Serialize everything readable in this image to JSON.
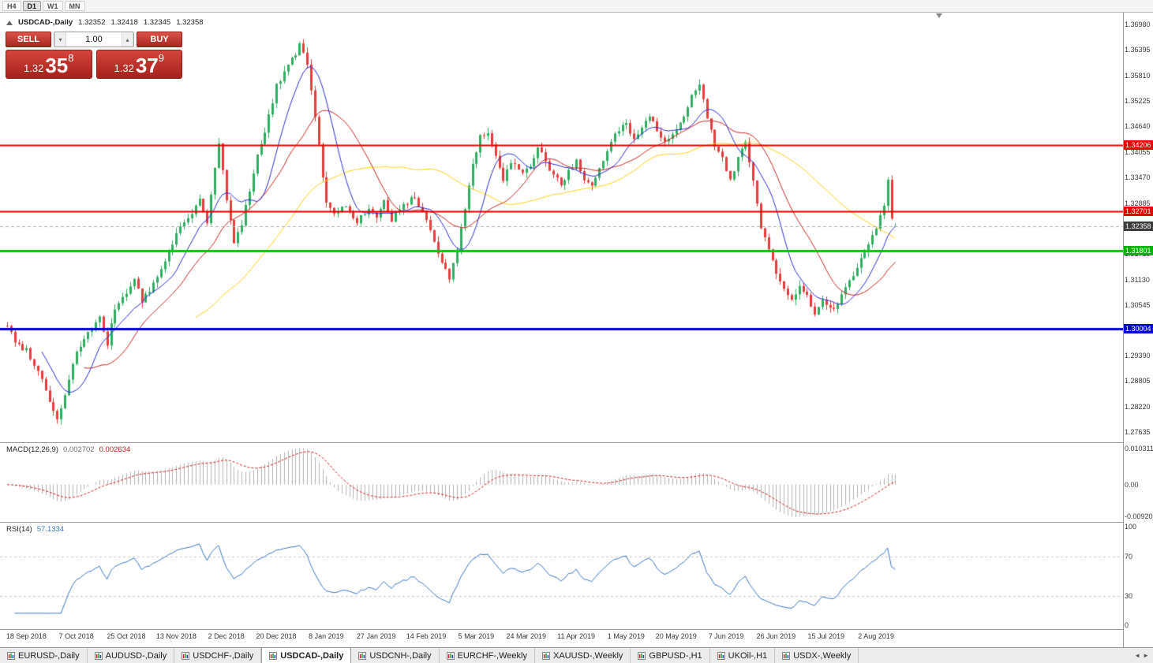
{
  "window": {
    "title": "USDCAD-,Daily"
  },
  "toolbar": {
    "timeframes": [
      {
        "label": "H4",
        "active": false
      },
      {
        "label": "D1",
        "active": true
      },
      {
        "label": "W1",
        "active": false
      },
      {
        "label": "MN",
        "active": false
      }
    ]
  },
  "chart_header": {
    "symbol": "USDCAD-,Daily",
    "open": "1.32352",
    "high": "1.32418",
    "low": "1.32345",
    "close": "1.32358"
  },
  "one_click": {
    "sell_label": "SELL",
    "buy_label": "BUY",
    "volume": "1.00",
    "vol_down_glyph": "▾",
    "vol_up_glyph": "▴",
    "sell_price": {
      "big": "1.32",
      "mid": "35",
      "sup": "8"
    },
    "buy_price": {
      "big": "1.32",
      "mid": "37",
      "sup": "9"
    }
  },
  "macd_panel": {
    "title": "MACD(12,26,9)",
    "value1": "0.002702",
    "value2": "0.002634",
    "axis_top": "0.010311",
    "axis_zero": "0.00",
    "axis_bottom": "-0.00920"
  },
  "rsi_panel": {
    "title": "RSI(14)",
    "value": "57.1334",
    "axis": [
      "100",
      "70",
      "30",
      "0"
    ]
  },
  "bottom_tabs": {
    "items": [
      {
        "label": "EURUSD-,Daily",
        "active": false
      },
      {
        "label": "AUDUSD-,Daily",
        "active": false
      },
      {
        "label": "USDCHF-,Daily",
        "active": false
      },
      {
        "label": "USDCAD-,Daily",
        "active": true
      },
      {
        "label": "USDCNH-,Daily",
        "active": false
      },
      {
        "label": "EURCHF-,Weekly",
        "active": false
      },
      {
        "label": "XAUUSD-,Weekly",
        "active": false
      },
      {
        "label": "GBPUSD-,H1",
        "active": false
      },
      {
        "label": "UKOil-,H1",
        "active": false
      },
      {
        "label": "USDX-,Weekly",
        "active": false
      }
    ],
    "scroll_left_glyph": "◄",
    "scroll_right_glyph": "►"
  },
  "chart_data": {
    "type": "candlestick",
    "symbol": "USDCAD",
    "timeframe": "Daily",
    "n_candles": 232,
    "last_candle": {
      "o": 1.32352,
      "h": 1.32418,
      "l": 1.32345,
      "c": 1.32358
    },
    "price_path_waypoints": [
      [
        0,
        1.301
      ],
      [
        2,
        1.2968
      ],
      [
        5,
        1.2952
      ],
      [
        8,
        1.2905
      ],
      [
        11,
        1.2838
      ],
      [
        13,
        1.279
      ],
      [
        15,
        1.2852
      ],
      [
        18,
        1.2948
      ],
      [
        21,
        1.299
      ],
      [
        24,
        1.3022
      ],
      [
        26,
        1.2965
      ],
      [
        28,
        1.3048
      ],
      [
        31,
        1.3082
      ],
      [
        33,
        1.3118
      ],
      [
        35,
        1.3062
      ],
      [
        38,
        1.3102
      ],
      [
        41,
        1.3152
      ],
      [
        44,
        1.3218
      ],
      [
        47,
        1.3258
      ],
      [
        50,
        1.3292
      ],
      [
        52,
        1.3245
      ],
      [
        55,
        1.3425
      ],
      [
        57,
        1.3298
      ],
      [
        59,
        1.3195
      ],
      [
        61,
        1.3242
      ],
      [
        63,
        1.332
      ],
      [
        65,
        1.3398
      ],
      [
        67,
        1.3452
      ],
      [
        70,
        1.3558
      ],
      [
        73,
        1.3605
      ],
      [
        76,
        1.3648
      ],
      [
        78,
        1.361
      ],
      [
        80,
        1.3482
      ],
      [
        82,
        1.3352
      ],
      [
        83,
        1.3295
      ],
      [
        85,
        1.3262
      ],
      [
        88,
        1.3282
      ],
      [
        91,
        1.3248
      ],
      [
        94,
        1.3272
      ],
      [
        96,
        1.3252
      ],
      [
        98,
        1.329
      ],
      [
        100,
        1.3252
      ],
      [
        103,
        1.3282
      ],
      [
        106,
        1.3302
      ],
      [
        109,
        1.3252
      ],
      [
        111,
        1.3202
      ],
      [
        113,
        1.3152
      ],
      [
        115,
        1.3118
      ],
      [
        117,
        1.3182
      ],
      [
        119,
        1.3272
      ],
      [
        121,
        1.3382
      ],
      [
        123,
        1.3438
      ],
      [
        125,
        1.3448
      ],
      [
        127,
        1.3392
      ],
      [
        129,
        1.3342
      ],
      [
        131,
        1.3382
      ],
      [
        134,
        1.3352
      ],
      [
        136,
        1.3372
      ],
      [
        138,
        1.3418
      ],
      [
        140,
        1.3382
      ],
      [
        142,
        1.3352
      ],
      [
        144,
        1.3332
      ],
      [
        146,
        1.3362
      ],
      [
        148,
        1.3382
      ],
      [
        150,
        1.3342
      ],
      [
        152,
        1.3322
      ],
      [
        154,
        1.3362
      ],
      [
        156,
        1.3412
      ],
      [
        158,
        1.3452
      ],
      [
        161,
        1.3472
      ],
      [
        163,
        1.3432
      ],
      [
        165,
        1.3462
      ],
      [
        167,
        1.3492
      ],
      [
        169,
        1.3452
      ],
      [
        171,
        1.3432
      ],
      [
        174,
        1.3462
      ],
      [
        176,
        1.3482
      ],
      [
        178,
        1.3532
      ],
      [
        180,
        1.3562
      ],
      [
        182,
        1.3482
      ],
      [
        184,
        1.3422
      ],
      [
        186,
        1.3392
      ],
      [
        188,
        1.3342
      ],
      [
        190,
        1.3392
      ],
      [
        192,
        1.3428
      ],
      [
        194,
        1.3342
      ],
      [
        196,
        1.3232
      ],
      [
        198,
        1.3182
      ],
      [
        200,
        1.3122
      ],
      [
        202,
        1.3092
      ],
      [
        204,
        1.3062
      ],
      [
        206,
        1.3102
      ],
      [
        208,
        1.3072
      ],
      [
        210,
        1.3032
      ],
      [
        212,
        1.3062
      ],
      [
        214,
        1.3042
      ],
      [
        216,
        1.3062
      ],
      [
        218,
        1.3092
      ],
      [
        220,
        1.3122
      ],
      [
        222,
        1.3162
      ],
      [
        224,
        1.3198
      ],
      [
        226,
        1.3232
      ],
      [
        228,
        1.3288
      ],
      [
        229,
        1.3338
      ],
      [
        230,
        1.3258
      ],
      [
        231,
        1.32358
      ]
    ],
    "x_labels": [
      "18 Sep 2018",
      "7 Oct 2018",
      "25 Oct 2018",
      "13 Nov 2018",
      "2 Dec 2018",
      "20 Dec 2018",
      "8 Jan 2019",
      "27 Jan 2019",
      "14 Feb 2019",
      "5 Mar 2019",
      "24 Mar 2019",
      "11 Apr 2019",
      "1 May 2019",
      "20 May 2019",
      "7 Jun 2019",
      "26 Jun 2019",
      "15 Jul 2019",
      "2 Aug 2019"
    ],
    "x_label_first_index": 5,
    "x_label_step": 13,
    "y_axis_labels": [
      "1.36980",
      "1.36395",
      "1.35810",
      "1.35225",
      "1.34640",
      "1.34055",
      "1.33470",
      "1.32885",
      "1.31715",
      "1.31130",
      "1.30545",
      "1.29390",
      "1.28805",
      "1.28220",
      "1.27635"
    ],
    "y_axis_range": {
      "top": 1.37251,
      "bottom": 1.274
    },
    "levels": [
      {
        "value": 1.34206,
        "label": "1.34206",
        "color": "#e60000",
        "tag_bg": "#e60000",
        "line_width": 2,
        "dashed": false,
        "name": "resistance-line-1-34206"
      },
      {
        "value": 1.32701,
        "label": "1.32701",
        "color": "#e60000",
        "tag_bg": "#e60000",
        "line_width": 2,
        "dashed": false,
        "name": "resistance-line-1-32701"
      },
      {
        "value": 1.32358,
        "label": "1.32358",
        "color": "#b0b0b0",
        "tag_bg": "#3c3c3c",
        "line_width": 1,
        "dashed": true,
        "name": "current-bid-line"
      },
      {
        "value": 1.31801,
        "label": "1.31801",
        "color": "#00c800",
        "tag_bg": "#00b400",
        "line_width": 3,
        "dashed": false,
        "name": "support-line-1-31801"
      },
      {
        "value": 1.30004,
        "label": "1.30004",
        "color": "#0000dc",
        "tag_bg": "#0000dc",
        "line_width": 3,
        "dashed": false,
        "name": "support-line-1-30004"
      }
    ],
    "moving_averages": [
      {
        "period": 10,
        "color": "#2b2bd4"
      },
      {
        "period": 21,
        "color": "#c72525"
      },
      {
        "period": 50,
        "color": "#ffd11a"
      }
    ],
    "candle_colors": {
      "up": "#2fae60",
      "down": "#e43d3d"
    },
    "macd": {
      "fast": 12,
      "slow": 26,
      "signal": 9,
      "hist_color": "#b2b2b2",
      "signal_color": "#cf1f1f"
    },
    "rsi": {
      "period": 14,
      "color": "#3a77c6",
      "levels": [
        70,
        30
      ]
    }
  }
}
